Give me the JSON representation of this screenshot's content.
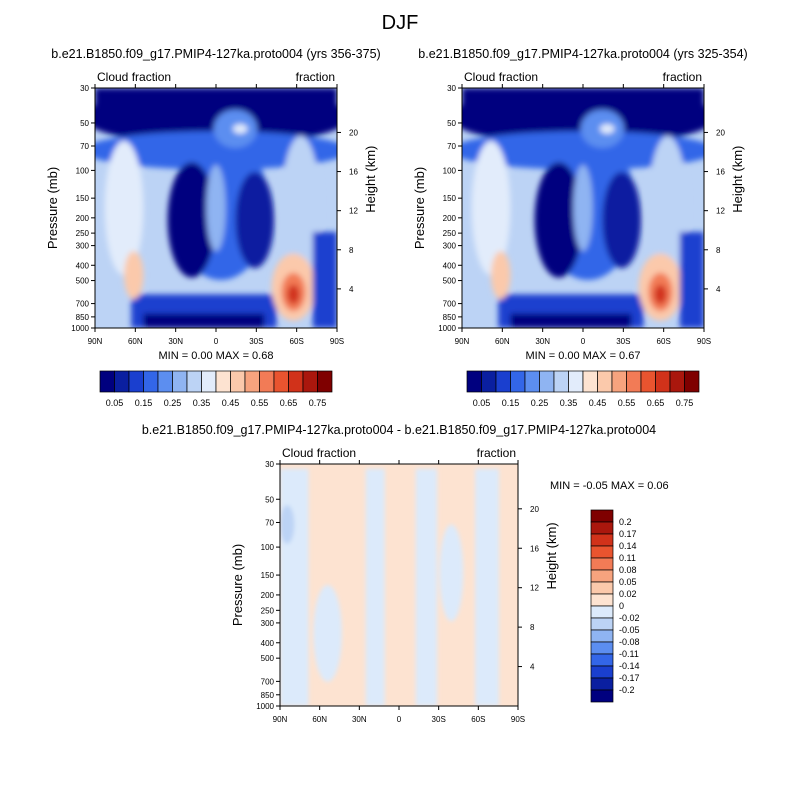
{
  "page": {
    "season": "DJF"
  },
  "chart_data": [
    {
      "type": "contour",
      "title": "b.e21.B1850.f09_g17.PMIP4-127ka.proto004 (yrs 356-375)",
      "left_label": "Cloud fraction",
      "right_label": "fraction",
      "ylabel": "Pressure (mb)",
      "ylabel_right": "Height (km)",
      "x_ticks": [
        "90N",
        "60N",
        "30N",
        "0",
        "30S",
        "60S",
        "90S"
      ],
      "x_values": [
        90,
        60,
        30,
        0,
        -30,
        -60,
        -90
      ],
      "y_ticks": [
        "30",
        "50",
        "70",
        "100",
        "150",
        "200",
        "250",
        "300",
        "400",
        "500",
        "700",
        "850",
        "1000"
      ],
      "y_values": [
        30,
        50,
        70,
        100,
        150,
        200,
        250,
        300,
        400,
        500,
        700,
        850,
        1000
      ],
      "height_ticks": [
        "20",
        "16",
        "12",
        "8",
        "4"
      ],
      "height_values": [
        20,
        16,
        12,
        8,
        4
      ],
      "stats": {
        "min_label": "MIN =",
        "min": "0.00",
        "max_label": "MAX =",
        "max": "0.68"
      },
      "colorbar_levels": [
        "0.05",
        "0.15",
        "0.25",
        "0.35",
        "0.45",
        "0.55",
        "0.65",
        "0.75"
      ]
    },
    {
      "type": "contour",
      "title": "b.e21.B1850.f09_g17.PMIP4-127ka.proto004 (yrs 325-354)",
      "left_label": "Cloud fraction",
      "right_label": "fraction",
      "ylabel": "Pressure (mb)",
      "ylabel_right": "Height (km)",
      "x_ticks": [
        "90N",
        "60N",
        "30N",
        "0",
        "30S",
        "60S",
        "90S"
      ],
      "x_values": [
        90,
        60,
        30,
        0,
        -30,
        -60,
        -90
      ],
      "y_ticks": [
        "30",
        "50",
        "70",
        "100",
        "150",
        "200",
        "250",
        "300",
        "400",
        "500",
        "700",
        "850",
        "1000"
      ],
      "y_values": [
        30,
        50,
        70,
        100,
        150,
        200,
        250,
        300,
        400,
        500,
        700,
        850,
        1000
      ],
      "height_ticks": [
        "20",
        "16",
        "12",
        "8",
        "4"
      ],
      "height_values": [
        20,
        16,
        12,
        8,
        4
      ],
      "stats": {
        "min_label": "MIN =",
        "min": "0.00",
        "max_label": "MAX =",
        "max": "0.67"
      },
      "colorbar_levels": [
        "0.05",
        "0.15",
        "0.25",
        "0.35",
        "0.45",
        "0.55",
        "0.65",
        "0.75"
      ]
    },
    {
      "type": "contour",
      "title": "b.e21.B1850.f09_g17.PMIP4-127ka.proto004 - b.e21.B1850.f09_g17.PMIP4-127ka.proto004",
      "left_label": "Cloud fraction",
      "right_label": "fraction",
      "ylabel": "Pressure (mb)",
      "ylabel_right": "Height (km)",
      "x_ticks": [
        "90N",
        "60N",
        "30N",
        "0",
        "30S",
        "60S",
        "90S"
      ],
      "x_values": [
        90,
        60,
        30,
        0,
        -30,
        -60,
        -90
      ],
      "y_ticks": [
        "30",
        "50",
        "70",
        "100",
        "150",
        "200",
        "250",
        "300",
        "400",
        "500",
        "700",
        "850",
        "1000"
      ],
      "y_values": [
        30,
        50,
        70,
        100,
        150,
        200,
        250,
        300,
        400,
        500,
        700,
        850,
        1000
      ],
      "height_ticks": [
        "20",
        "16",
        "12",
        "8",
        "4"
      ],
      "height_values": [
        20,
        16,
        12,
        8,
        4
      ],
      "stats": {
        "min_label": "MIN =",
        "min": "-0.05",
        "max_label": "MAX =",
        "max": "0.06"
      },
      "colorbar_levels": [
        "0.2",
        "0.17",
        "0.14",
        "0.11",
        "0.08",
        "0.05",
        "0.02",
        "0",
        "-0.02",
        "-0.05",
        "-0.08",
        "-0.11",
        "-0.14",
        "-0.17",
        "-0.2"
      ]
    }
  ],
  "colors": {
    "abs": [
      "#00007f",
      "#0a1fa0",
      "#1a3fcf",
      "#3366e8",
      "#5c8ef0",
      "#8fb4f2",
      "#bcd3f5",
      "#e2ecfb",
      "#fde3d1",
      "#fbc9ab",
      "#f7a37e",
      "#f27b56",
      "#e9542f",
      "#d1321a",
      "#aa170d",
      "#7f0000"
    ],
    "diff": [
      "#7f0000",
      "#aa170d",
      "#d1321a",
      "#e9542f",
      "#f27b56",
      "#f7a37e",
      "#fbc9ab",
      "#fde3d1",
      "#dceafb",
      "#bcd3f5",
      "#8fb4f2",
      "#5c8ef0",
      "#3366e8",
      "#1a3fcf",
      "#0a1fa0",
      "#00007f"
    ]
  }
}
